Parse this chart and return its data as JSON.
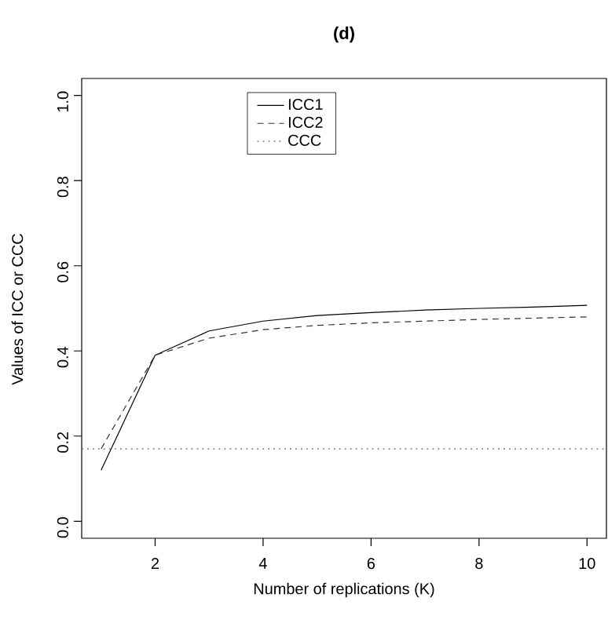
{
  "chart_data": {
    "type": "line",
    "title": "(d)",
    "xlabel": "Number of replications (K)",
    "ylabel": "Values of ICC or CCC",
    "x": [
      1,
      2,
      3,
      4,
      5,
      6,
      7,
      8,
      9,
      10
    ],
    "series": [
      {
        "name": "ICC1",
        "color": "#000000",
        "line_style": "solid",
        "values": [
          0.12,
          0.39,
          0.447,
          0.47,
          0.483,
          0.49,
          0.496,
          0.5,
          0.503,
          0.507
        ]
      },
      {
        "name": "ICC2",
        "color": "#333333",
        "line_style": "dashed",
        "values": [
          0.17,
          0.39,
          0.43,
          0.45,
          0.46,
          0.466,
          0.47,
          0.474,
          0.477,
          0.48
        ]
      },
      {
        "name": "CCC",
        "color": "#666666",
        "line_style": "dotted",
        "x": [
          0.64,
          10.36
        ],
        "values": [
          0.17,
          0.17
        ]
      }
    ],
    "xlim": [
      0.64,
      10.36
    ],
    "ylim": [
      -0.04,
      1.04
    ],
    "xticks": [
      2,
      4,
      6,
      8,
      10
    ],
    "yticks": [
      {
        "value": 0,
        "label": "0.0"
      },
      {
        "value": 0.2,
        "label": "0.2"
      },
      {
        "value": 0.4,
        "label": "0.4"
      },
      {
        "value": 0.6,
        "label": "0.6"
      },
      {
        "value": 0.8,
        "label": "0.8"
      },
      {
        "value": 1,
        "label": "1.0"
      }
    ],
    "legend": "top",
    "grid": false
  }
}
